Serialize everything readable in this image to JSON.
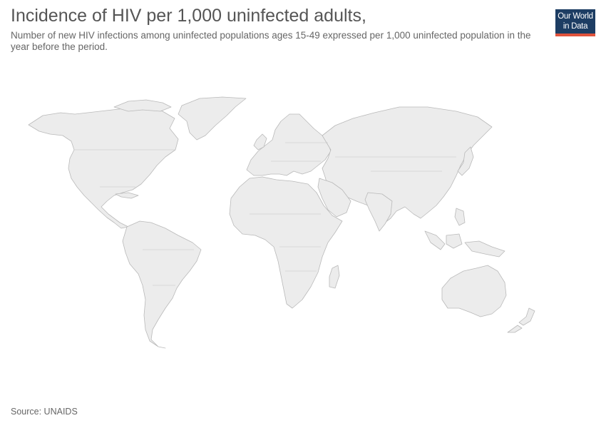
{
  "header": {
    "title": "Incidence of HIV per 1,000 uninfected adults,",
    "subtitle": "Number of new HIV infections among uninfected populations ages 15-49 expressed per 1,000 uninfected population in the year before the period."
  },
  "logo": {
    "line1": "Our World",
    "line2": "in Data",
    "background": "#1d3d63",
    "accent": "#e0533c"
  },
  "map": {
    "land_color": "#ececec",
    "border_color": "#b9b9b9"
  },
  "footer": {
    "source": "Source: UNAIDS"
  }
}
